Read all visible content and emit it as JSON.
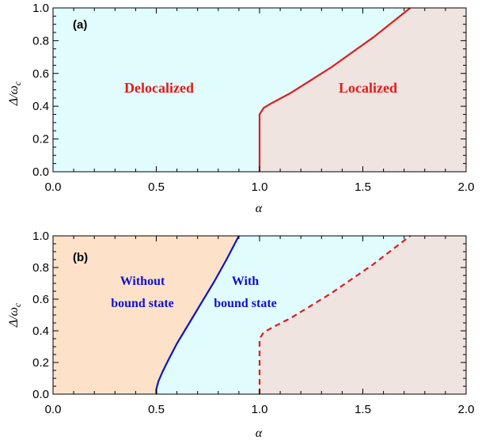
{
  "colors": {
    "delocalized_fill": "#e0fcfc",
    "localized_fill": "#efe4e0",
    "without_bound_fill": "#fde2c9",
    "red": "#e41a1c",
    "blue": "#0a14c8",
    "label_red": "#e41a1c",
    "label_blue": "#1010d0"
  },
  "chart_data": [
    {
      "type": "area",
      "panel_label": "(a)",
      "xlabel": "α",
      "ylabel_main": "Δ/ω",
      "ylabel_sub": "c",
      "xlim": [
        0.0,
        2.0
      ],
      "ylim": [
        0.0,
        1.0
      ],
      "xticks": [
        "0.0",
        "0.5",
        "1.0",
        "1.5",
        "2.0"
      ],
      "yticks": [
        "0.0",
        "0.2",
        "0.4",
        "0.6",
        "0.8",
        "1.0"
      ],
      "regions": [
        {
          "label": "Delocalized",
          "fill": "delocalized"
        },
        {
          "label": "Localized",
          "fill": "localized"
        }
      ],
      "series": [
        {
          "style": "solid",
          "color": "red",
          "points": [
            [
              1.0,
              0.0
            ],
            [
              1.0,
              0.35
            ],
            [
              1.02,
              0.39
            ],
            [
              1.06,
              0.42
            ],
            [
              1.15,
              0.48
            ],
            [
              1.25,
              0.56
            ],
            [
              1.35,
              0.64
            ],
            [
              1.45,
              0.73
            ],
            [
              1.55,
              0.82
            ],
            [
              1.65,
              0.92
            ],
            [
              1.73,
              1.0
            ]
          ]
        }
      ]
    },
    {
      "type": "area",
      "panel_label": "(b)",
      "xlabel": "α",
      "ylabel_main": "Δ/ω",
      "ylabel_sub": "c",
      "xlim": [
        0.0,
        2.0
      ],
      "ylim": [
        0.0,
        1.0
      ],
      "xticks": [
        "0.0",
        "0.5",
        "1.0",
        "1.5",
        "2.0"
      ],
      "yticks": [
        "0.0",
        "0.2",
        "0.4",
        "0.6",
        "0.8",
        "1.0"
      ],
      "regions": [
        {
          "label_line1": "Without",
          "label_line2": "bound state",
          "fill": "without"
        },
        {
          "label_line1": "With",
          "label_line2": "bound state",
          "fill": "delocalized"
        },
        {
          "fill": "localized"
        }
      ],
      "series": [
        {
          "style": "solid",
          "color": "blue",
          "points": [
            [
              0.5,
              0.0
            ],
            [
              0.5,
              0.03
            ],
            [
              0.51,
              0.08
            ],
            [
              0.53,
              0.14
            ],
            [
              0.56,
              0.22
            ],
            [
              0.6,
              0.32
            ],
            [
              0.66,
              0.45
            ],
            [
              0.72,
              0.58
            ],
            [
              0.78,
              0.71
            ],
            [
              0.84,
              0.85
            ],
            [
              0.9,
              1.0
            ]
          ]
        },
        {
          "style": "dashed",
          "color": "red",
          "points": [
            [
              1.0,
              0.0
            ],
            [
              1.0,
              0.35
            ],
            [
              1.02,
              0.39
            ],
            [
              1.06,
              0.42
            ],
            [
              1.15,
              0.48
            ],
            [
              1.25,
              0.56
            ],
            [
              1.35,
              0.64
            ],
            [
              1.45,
              0.73
            ],
            [
              1.55,
              0.82
            ],
            [
              1.65,
              0.92
            ],
            [
              1.73,
              1.0
            ]
          ]
        }
      ]
    }
  ]
}
